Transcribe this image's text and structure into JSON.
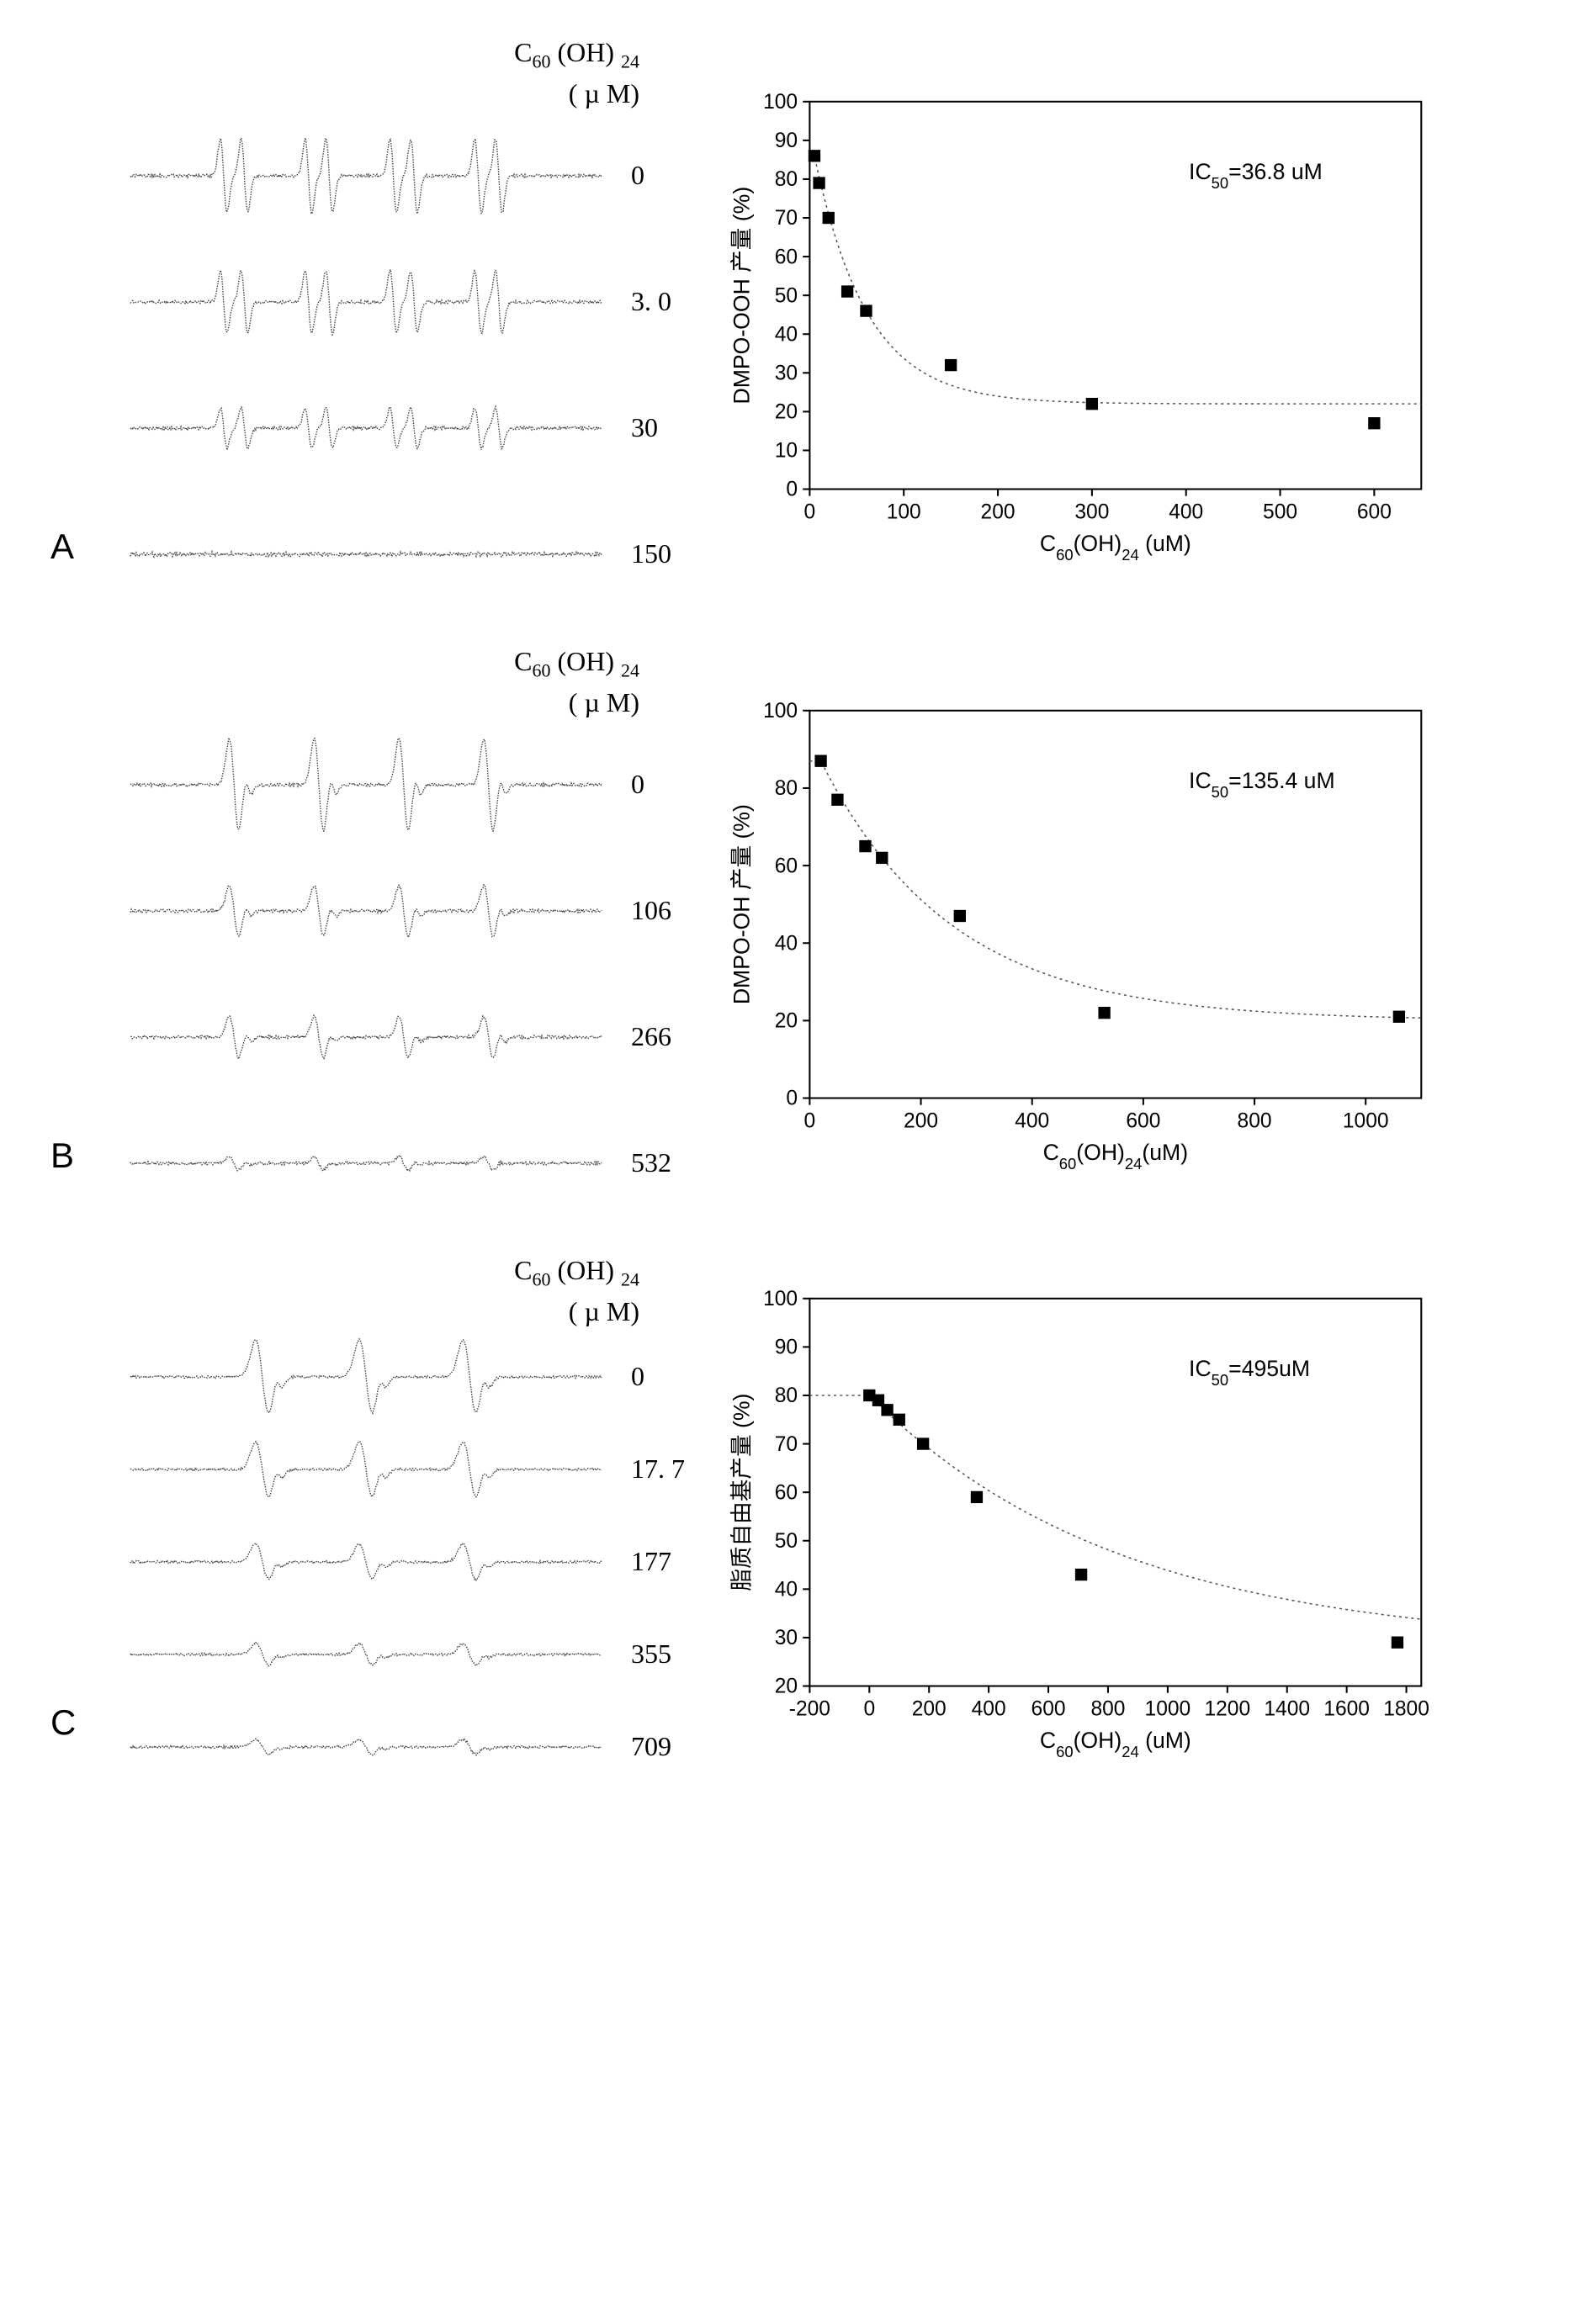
{
  "colors": {
    "background": "#ffffff",
    "line": "#000000",
    "marker": "#000000",
    "dotted": "#888888",
    "tick": "#000000"
  },
  "panels": [
    {
      "label": "A",
      "esr_header_line1": "C₆₀(OH)₂₄",
      "esr_header_line2": "( µ M)",
      "spectra": [
        {
          "conc": "0",
          "amplitude": 1.0,
          "pattern": "quartet_split"
        },
        {
          "conc": "3. 0",
          "amplitude": 0.85,
          "pattern": "quartet_split"
        },
        {
          "conc": "30",
          "amplitude": 0.55,
          "pattern": "quartet_split"
        },
        {
          "conc": "150",
          "amplitude": 0.18,
          "pattern": "noise"
        }
      ],
      "chart": {
        "ylabel": "DMPO-OOH 产量 (%)",
        "xlabel": "C₆₀(OH)₂₄ (uM)",
        "annotation": "IC₅₀=36.8 uM",
        "xlim": [
          0,
          650
        ],
        "ylim": [
          0,
          100
        ],
        "xticks": [
          0,
          100,
          200,
          300,
          400,
          500,
          600
        ],
        "yticks": [
          0,
          10,
          20,
          30,
          40,
          50,
          60,
          70,
          80,
          90,
          100
        ],
        "points": [
          {
            "x": 5,
            "y": 86
          },
          {
            "x": 10,
            "y": 79
          },
          {
            "x": 20,
            "y": 70
          },
          {
            "x": 40,
            "y": 51
          },
          {
            "x": 60,
            "y": 46
          },
          {
            "x": 150,
            "y": 32
          },
          {
            "x": 300,
            "y": 22
          },
          {
            "x": 600,
            "y": 17
          }
        ],
        "fit_asymptote": 22
      }
    },
    {
      "label": "B",
      "esr_header_line1": "C₆₀(OH)₂₄",
      "esr_header_line2": "( µ M)",
      "spectra": [
        {
          "conc": "0",
          "amplitude": 1.0,
          "pattern": "quartet"
        },
        {
          "conc": "106",
          "amplitude": 0.55,
          "pattern": "quartet"
        },
        {
          "conc": "266",
          "amplitude": 0.45,
          "pattern": "quartet"
        },
        {
          "conc": "532",
          "amplitude": 0.15,
          "pattern": "quartet"
        }
      ],
      "chart": {
        "ylabel": "DMPO-OH 产量 (%)",
        "xlabel": "C₆₀(OH)₂₄(uM)",
        "annotation": "IC₅₀=135.4 uM",
        "xlim": [
          0,
          1100
        ],
        "ylim": [
          0,
          100
        ],
        "xticks": [
          0,
          200,
          400,
          600,
          800,
          1000
        ],
        "yticks": [
          0,
          20,
          40,
          60,
          80,
          100
        ],
        "points": [
          {
            "x": 20,
            "y": 87
          },
          {
            "x": 50,
            "y": 77
          },
          {
            "x": 100,
            "y": 65
          },
          {
            "x": 130,
            "y": 62
          },
          {
            "x": 270,
            "y": 47
          },
          {
            "x": 530,
            "y": 22
          },
          {
            "x": 1060,
            "y": 21
          }
        ],
        "fit_asymptote": 20
      }
    },
    {
      "label": "C",
      "esr_header_line1": "C₆₀(OH)₂₄",
      "esr_header_line2": "( µ M)",
      "spectra": [
        {
          "conc": "0",
          "amplitude": 1.0,
          "pattern": "triplet"
        },
        {
          "conc": "17. 7",
          "amplitude": 0.75,
          "pattern": "triplet"
        },
        {
          "conc": "177",
          "amplitude": 0.48,
          "pattern": "triplet"
        },
        {
          "conc": "355",
          "amplitude": 0.3,
          "pattern": "triplet"
        },
        {
          "conc": "709",
          "amplitude": 0.2,
          "pattern": "triplet"
        }
      ],
      "chart": {
        "ylabel": "脂质自由基产量 (%)",
        "xlabel": "C₆₀(OH)₂₄ (uM)",
        "annotation": "IC₅₀=495uM",
        "xlim": [
          -200,
          1850
        ],
        "ylim": [
          20,
          100
        ],
        "xticks": [
          -200,
          0,
          200,
          400,
          600,
          800,
          1000,
          1200,
          1400,
          1600,
          1800
        ],
        "yticks": [
          20,
          30,
          40,
          50,
          60,
          70,
          80,
          90,
          100
        ],
        "points": [
          {
            "x": 0,
            "y": 80
          },
          {
            "x": 30,
            "y": 79
          },
          {
            "x": 60,
            "y": 77
          },
          {
            "x": 100,
            "y": 75
          },
          {
            "x": 180,
            "y": 70
          },
          {
            "x": 360,
            "y": 59
          },
          {
            "x": 710,
            "y": 43
          },
          {
            "x": 1770,
            "y": 29
          }
        ],
        "fit_asymptote": 28
      }
    }
  ],
  "chart_style": {
    "marker_size": 7,
    "tick_len": 8,
    "axis_width": 2,
    "fit_dash": "3,4",
    "label_fontsize": 26,
    "tick_fontsize": 24,
    "anno_fontsize": 26
  }
}
